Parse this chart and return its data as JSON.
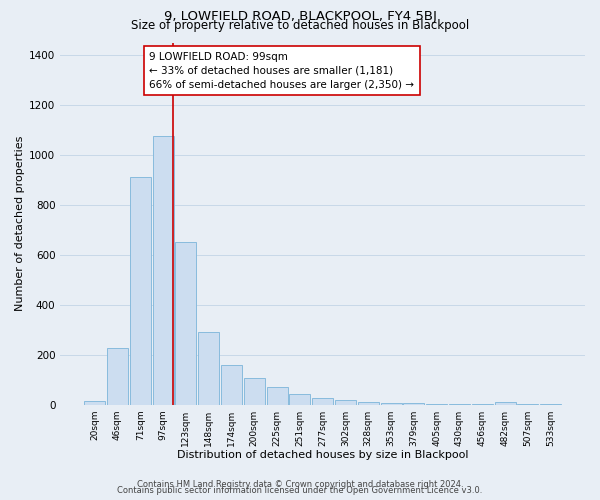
{
  "title1": "9, LOWFIELD ROAD, BLACKPOOL, FY4 5BJ",
  "title2": "Size of property relative to detached houses in Blackpool",
  "xlabel": "Distribution of detached houses by size in Blackpool",
  "ylabel": "Number of detached properties",
  "bar_labels": [
    "20sqm",
    "46sqm",
    "71sqm",
    "97sqm",
    "123sqm",
    "148sqm",
    "174sqm",
    "200sqm",
    "225sqm",
    "251sqm",
    "277sqm",
    "302sqm",
    "328sqm",
    "353sqm",
    "379sqm",
    "405sqm",
    "430sqm",
    "456sqm",
    "482sqm",
    "507sqm",
    "533sqm"
  ],
  "bar_values": [
    15,
    228,
    910,
    1075,
    650,
    290,
    160,
    108,
    70,
    42,
    25,
    18,
    12,
    8,
    5,
    3,
    2,
    2,
    10,
    2,
    2
  ],
  "bar_color": "#ccddf0",
  "bar_edgecolor": "#88bbdd",
  "bar_linewidth": 0.7,
  "vline_x": 3.45,
  "vline_color": "#cc0000",
  "vline_linewidth": 1.2,
  "annotation_line1": "9 LOWFIELD ROAD: 99sqm",
  "annotation_line2": "← 33% of detached houses are smaller (1,181)",
  "annotation_line3": "66% of semi-detached houses are larger (2,350) →",
  "annotation_box_color": "#ffffff",
  "annotation_box_edgecolor": "#cc0000",
  "ylim": [
    0,
    1450
  ],
  "yticks": [
    0,
    200,
    400,
    600,
    800,
    1000,
    1200,
    1400
  ],
  "grid_color": "#c8d8e8",
  "bg_color": "#e8eef5",
  "footer1": "Contains HM Land Registry data © Crown copyright and database right 2024.",
  "footer2": "Contains public sector information licensed under the Open Government Licence v3.0.",
  "title1_fontsize": 9.5,
  "title2_fontsize": 8.5,
  "xlabel_fontsize": 8,
  "ylabel_fontsize": 8,
  "annotation_fontsize": 7.5,
  "footer_fontsize": 6,
  "tick_fontsize": 6.5,
  "ytick_fontsize": 7.5
}
